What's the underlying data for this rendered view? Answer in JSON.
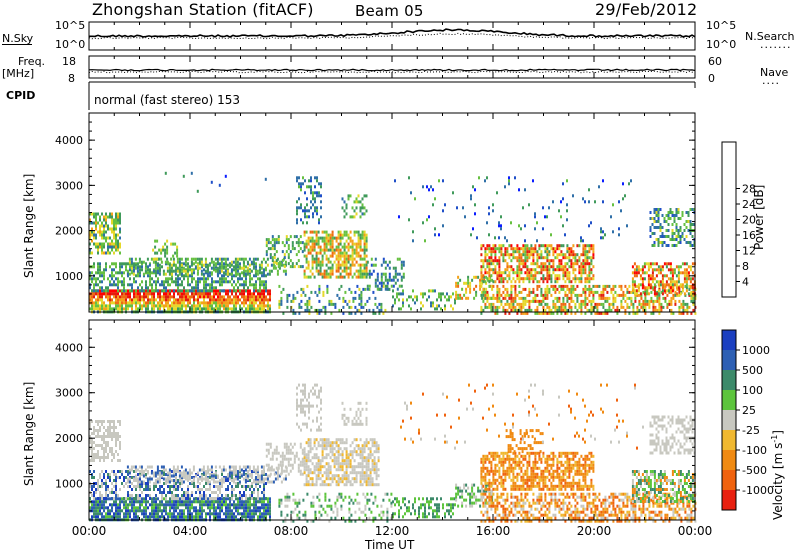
{
  "header": {
    "title": "Zhongshan Station (fitACF)",
    "beam": "Beam 05",
    "date": "29/Feb/2012"
  },
  "top_panels": {
    "nsky": {
      "label": "N.Sky",
      "left_ticks": [
        "10^5",
        "10^0"
      ],
      "right_label": "N.Search",
      "right_ticks": [
        "10^5",
        "10^0"
      ]
    },
    "freq": {
      "label_line1": "Freq.",
      "label_line2": "[MHz]",
      "left_ticks": [
        "18",
        "8"
      ],
      "right_label": "Nave",
      "right_ticks": [
        "60",
        "0"
      ]
    },
    "cpid": {
      "label": "CPID",
      "value": "normal (fast stereo) 153"
    }
  },
  "chart_data": [
    {
      "type": "heatmap",
      "name": "power",
      "ylabel": "Slant Range [km]",
      "y_ticks": [
        "1000",
        "2000",
        "3000",
        "4000"
      ],
      "ylim": [
        200,
        4600
      ],
      "colorbar": {
        "label": "Power [dB]",
        "ticks": [
          "4",
          "8",
          "12",
          "16",
          "20",
          "24",
          "28"
        ],
        "colors": [
          "#0a1cff",
          "#1f4fc8",
          "#2f6fa8",
          "#3f9a5a",
          "#66c040",
          "#e5d82a",
          "#f4a21a",
          "#ef6a12",
          "#e21d0e",
          "#ff0000"
        ]
      }
    },
    {
      "type": "heatmap",
      "name": "velocity",
      "ylabel": "Slant Range [km]",
      "y_ticks": [
        "1000",
        "2000",
        "3000",
        "4000"
      ],
      "ylim": [
        200,
        4600
      ],
      "colorbar": {
        "label": "Velocity [m s",
        "label_sup": "-1",
        "label_end": "]",
        "ticks": [
          "1000",
          "500",
          "100",
          "25",
          "-25",
          "-100",
          "-500",
          "-1000"
        ],
        "colors": [
          "#1b3fc0",
          "#2d5fb3",
          "#3c8a6a",
          "#5cc43c",
          "#c8c8c0",
          "#f0b830",
          "#f08a12",
          "#f0620e",
          "#e82010"
        ]
      },
      "x_ticks": [
        "00:00",
        "04:00",
        "08:00",
        "12:00",
        "16:00",
        "20:00",
        "00:00"
      ],
      "xlabel": "Time UT"
    }
  ]
}
